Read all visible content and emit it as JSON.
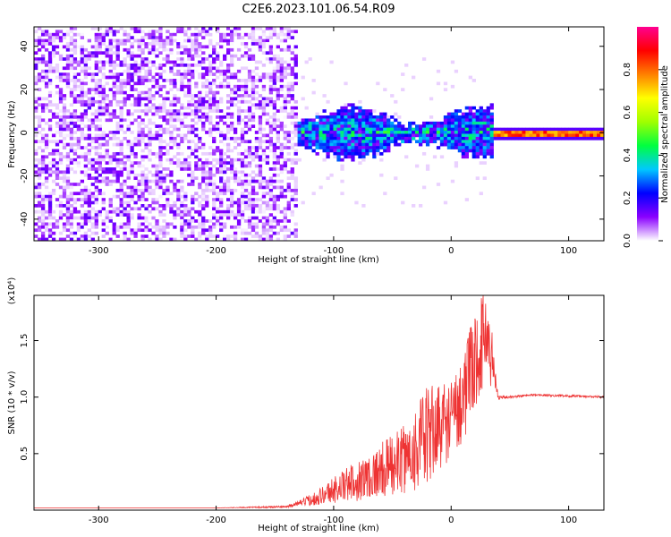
{
  "title": "C2E6.2023.101.06.54.R09",
  "chart_data": [
    {
      "type": "heatmap",
      "xlabel": "Height of straight line (km)",
      "ylabel": "Frequency (Hz)",
      "xlim": [
        -355,
        130
      ],
      "ylim": [
        -50,
        49
      ],
      "xticks": [
        -300,
        -200,
        -100,
        0,
        100
      ],
      "xtick_labels": [
        "-300",
        "-200",
        "-100",
        "0",
        "100"
      ],
      "yticks": [
        -40,
        -20,
        0,
        20,
        40
      ],
      "ytick_labels": [
        "-40",
        "-20",
        "0",
        "20",
        "40"
      ],
      "colorbar": {
        "label": "Normalized spectral amplitude",
        "range": [
          0,
          1
        ],
        "ticks": [
          0.0,
          0.2,
          0.4,
          0.6,
          0.8
        ],
        "tick_labels": [
          "0.0",
          "0.2",
          "0.4",
          "0.6",
          "0.8"
        ],
        "colormap": [
          "#ffffff",
          "#8a00ff",
          "#0000ff",
          "#00c8ff",
          "#00ff40",
          "#a0ff00",
          "#ffff00",
          "#ff8000",
          "#ff0000",
          "#ff0090"
        ]
      },
      "regions": [
        {
          "x_range": [
            -355,
            -130
          ],
          "freq_range": [
            -50,
            49
          ],
          "amplitude": [
            0.0,
            0.15
          ],
          "description_key": "noise"
        },
        {
          "x_range": [
            -130,
            35
          ],
          "freq_range": [
            -12,
            12
          ],
          "amplitude": [
            0.1,
            0.5
          ]
        },
        {
          "x_range": [
            35,
            130
          ],
          "freq_range": [
            -1.5,
            1.5
          ],
          "amplitude": [
            0.7,
            0.9
          ]
        }
      ],
      "grid": false
    },
    {
      "type": "line",
      "xlabel": "Height of straight line (km)",
      "ylabel": "SNR (10 * v/v)",
      "y_multiplier": "(x10⁴)",
      "xlim": [
        -355,
        130
      ],
      "ylim": [
        0,
        1.9
      ],
      "xticks": [
        -300,
        -200,
        -100,
        0,
        100
      ],
      "xtick_labels": [
        "-300",
        "-200",
        "-100",
        "0",
        "100"
      ],
      "yticks": [
        0.5,
        1.0,
        1.5
      ],
      "ytick_labels": [
        "0.5",
        "1.0",
        "1.5"
      ],
      "series": [
        {
          "color": "#ee3333",
          "x": [
            -355,
            -300,
            -200,
            -140,
            -130,
            -120,
            -110,
            -100,
            -90,
            -80,
            -70,
            -60,
            -50,
            -40,
            -30,
            -20,
            -10,
            0,
            10,
            20,
            30,
            35,
            40,
            50,
            70,
            100,
            130
          ],
          "y": [
            0.02,
            0.02,
            0.02,
            0.03,
            0.06,
            0.09,
            0.13,
            0.18,
            0.22,
            0.26,
            0.3,
            0.35,
            0.4,
            0.45,
            0.55,
            0.65,
            0.75,
            0.8,
            1.0,
            1.3,
            1.6,
            1.3,
            1.0,
            1.0,
            1.02,
            1.01,
            1.0
          ],
          "noise_amplitude": [
            0.0,
            0.0,
            0.0,
            0.01,
            0.02,
            0.05,
            0.08,
            0.12,
            0.15,
            0.18,
            0.2,
            0.24,
            0.28,
            0.3,
            0.4,
            0.45,
            0.4,
            0.35,
            0.4,
            0.45,
            0.4,
            0.3,
            0.02,
            0.01,
            0.01,
            0.01,
            0.01
          ]
        }
      ],
      "grid": false
    }
  ]
}
